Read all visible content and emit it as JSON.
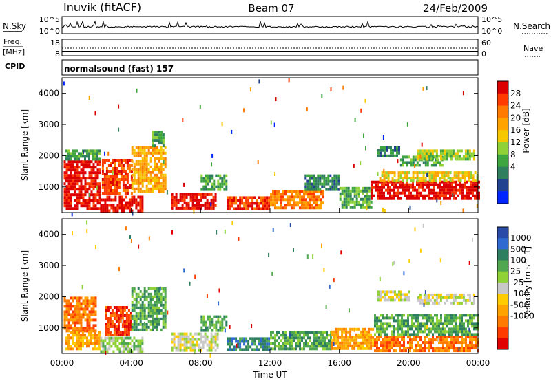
{
  "header": {
    "title": "Inuvik (fitACF)",
    "beam": "Beam 07",
    "date": "24/Feb/2009"
  },
  "nsky_panel": {
    "left_label": "N.Sky",
    "left_ticks": [
      "10^5",
      "10^0"
    ],
    "right_ticks": [
      "10^5",
      "10^0"
    ],
    "right_label": "N.Search"
  },
  "freq_panel": {
    "left_label_line1": "Freq.",
    "left_label_line2": "[MHz]",
    "left_ticks": [
      "18",
      "8"
    ],
    "right_ticks": [
      "60",
      "0"
    ],
    "right_label": "Nave"
  },
  "cpid_panel": {
    "label": "CPID",
    "mode_text": "normalsound (fast) 157"
  },
  "power_colorbar": {
    "label": "Power [dB]",
    "ticks": [
      "28",
      "24",
      "20",
      "16",
      "12",
      "8",
      "4"
    ],
    "colors": [
      "#dd0000",
      "#ff3b00",
      "#ff7a00",
      "#ffa300",
      "#f5c800",
      "#8fd137",
      "#3fa63f",
      "#2f7f5f",
      "#20428f",
      "#0026ff"
    ]
  },
  "velocity_colorbar": {
    "label": "Velocity [m s^-1]",
    "ticks": [
      "1000",
      "500",
      "100",
      "25",
      "-25",
      "-100",
      "-500",
      "-1000"
    ],
    "colors": [
      "#2a4aa8",
      "#2f6ad0",
      "#2e7f5f",
      "#4fa84f",
      "#8fd137",
      "#c8c8c8",
      "#ffcc00",
      "#ffa300",
      "#ff7a00",
      "#ff3b00",
      "#e00000"
    ]
  },
  "chart_data": [
    {
      "type": "heatmap",
      "name": "power",
      "ylabel": "Slant Range [km]",
      "xlabel": "",
      "yticks": [
        "1000",
        "2000",
        "3000",
        "4000"
      ],
      "ylim": [
        180,
        4500
      ],
      "xlim_hours": [
        0,
        24
      ],
      "bands": [
        {
          "t0": 0.1,
          "t1": 2.2,
          "r0": 300,
          "r1": 1850,
          "level": 0
        },
        {
          "t0": 0.2,
          "t1": 2.2,
          "r0": 1850,
          "r1": 2200,
          "level": 6
        },
        {
          "t0": 2.2,
          "t1": 4.6,
          "r0": 250,
          "r1": 720,
          "level": 0
        },
        {
          "t0": 2.3,
          "t1": 4.0,
          "r0": 800,
          "r1": 1900,
          "level": 1
        },
        {
          "t0": 4.0,
          "t1": 6.0,
          "r0": 850,
          "r1": 2300,
          "level": 3
        },
        {
          "t0": 5.2,
          "t1": 5.8,
          "r0": 2300,
          "r1": 2800,
          "level": 6
        },
        {
          "t0": 6.3,
          "t1": 8.9,
          "r0": 280,
          "r1": 800,
          "level": 0
        },
        {
          "t0": 8.0,
          "t1": 9.5,
          "r0": 900,
          "r1": 1400,
          "level": 6
        },
        {
          "t0": 9.5,
          "t1": 12.0,
          "r0": 300,
          "r1": 700,
          "level": 1
        },
        {
          "t0": 12.0,
          "t1": 15.0,
          "r0": 320,
          "r1": 900,
          "level": 2
        },
        {
          "t0": 14.0,
          "t1": 16.0,
          "r0": 900,
          "r1": 1400,
          "level": 7
        },
        {
          "t0": 16.0,
          "t1": 17.8,
          "r0": 300,
          "r1": 1000,
          "level": 6
        },
        {
          "t0": 17.8,
          "t1": 24.0,
          "r0": 650,
          "r1": 1200,
          "level": 0
        },
        {
          "t0": 18.3,
          "t1": 24.0,
          "r0": 1200,
          "r1": 1500,
          "level": 4
        },
        {
          "t0": 18.2,
          "t1": 19.5,
          "r0": 2000,
          "r1": 2300,
          "level": 7
        },
        {
          "t0": 19.5,
          "t1": 22.0,
          "r0": 1650,
          "r1": 2000,
          "level": 6
        },
        {
          "t0": 20.5,
          "t1": 23.8,
          "r0": 1900,
          "r1": 2200,
          "level": 5
        }
      ]
    },
    {
      "type": "heatmap",
      "name": "velocity",
      "ylabel": "Slant Range [km]",
      "xlabel": "Time UT",
      "yticks": [
        "1000",
        "2000",
        "3000",
        "4000"
      ],
      "xticks": [
        "00:00",
        "04:00",
        "08:00",
        "12:00",
        "16:00",
        "20:00",
        "00:00"
      ],
      "ylim": [
        180,
        4500
      ],
      "xlim_hours": [
        0,
        24
      ],
      "bands": [
        {
          "t0": 0.1,
          "t1": 2.0,
          "r0": 900,
          "r1": 2000,
          "level": 8
        },
        {
          "t0": 0.2,
          "t1": 2.2,
          "r0": 300,
          "r1": 900,
          "level": 7
        },
        {
          "t0": 2.2,
          "t1": 4.6,
          "r0": 250,
          "r1": 720,
          "level": 4
        },
        {
          "t0": 2.5,
          "t1": 4.0,
          "r0": 800,
          "r1": 1700,
          "level": 9
        },
        {
          "t0": 4.0,
          "t1": 6.0,
          "r0": 900,
          "r1": 2300,
          "level": 3
        },
        {
          "t0": 6.3,
          "t1": 9.0,
          "r0": 280,
          "r1": 850,
          "level": 5
        },
        {
          "t0": 8.0,
          "t1": 9.5,
          "r0": 900,
          "r1": 1400,
          "level": 3
        },
        {
          "t0": 9.5,
          "t1": 12.0,
          "r0": 300,
          "r1": 700,
          "level": 2
        },
        {
          "t0": 12.0,
          "t1": 15.5,
          "r0": 300,
          "r1": 900,
          "level": 3
        },
        {
          "t0": 15.5,
          "t1": 18.0,
          "r0": 300,
          "r1": 1000,
          "level": 7
        },
        {
          "t0": 18.0,
          "t1": 24.0,
          "r0": 300,
          "r1": 750,
          "level": 8
        },
        {
          "t0": 18.0,
          "t1": 24.0,
          "r0": 750,
          "r1": 1450,
          "level": 3
        },
        {
          "t0": 18.2,
          "t1": 20.0,
          "r0": 1900,
          "r1": 2200,
          "level": 5
        },
        {
          "t0": 20.5,
          "t1": 23.8,
          "r0": 1800,
          "r1": 2100,
          "level": 5
        }
      ]
    }
  ]
}
